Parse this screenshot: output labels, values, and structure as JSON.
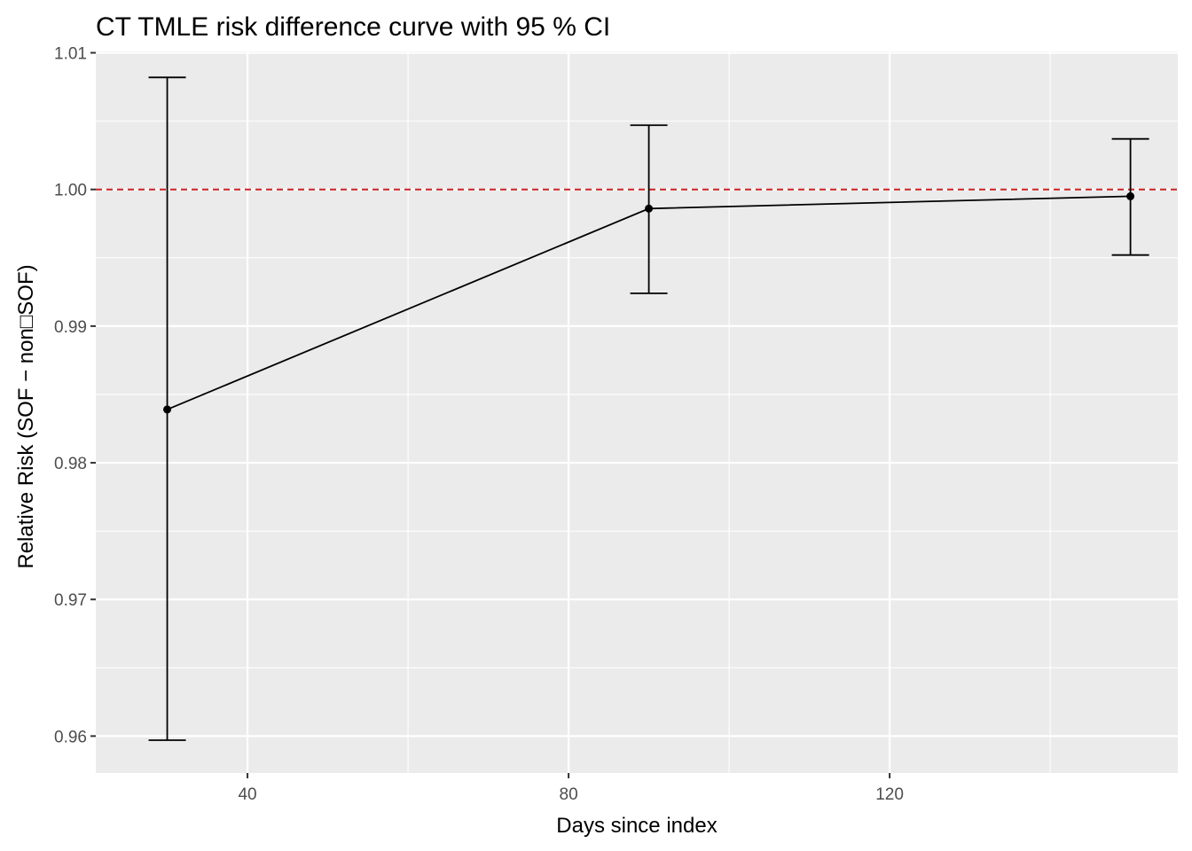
{
  "chart_data": {
    "type": "line",
    "title": "CT TMLE risk difference curve with 95 % CI",
    "xlabel": "Days since index",
    "ylabel": "Relative Risk (SOF − non□SOF)",
    "xlim": [
      21.1,
      155.9
    ],
    "ylim": [
      0.9573,
      1.0101
    ],
    "x_ticks": [
      40,
      80,
      120
    ],
    "x_tick_labels": [
      "40",
      "80",
      "120"
    ],
    "y_ticks": [
      0.96,
      0.97,
      0.98,
      0.99,
      1.0,
      1.01
    ],
    "y_tick_labels": [
      "0.96",
      "0.97",
      "0.98",
      "0.99",
      "1.00",
      "1.01"
    ],
    "grid": true,
    "panel_background": "#ebebeb",
    "series": [
      {
        "x": [
          30,
          90,
          150
        ],
        "values": [
          0.9839,
          0.9986,
          0.9995
        ],
        "lower": [
          0.9597,
          0.9924,
          0.9952
        ],
        "upper": [
          1.0082,
          1.0047,
          1.0037
        ],
        "color": "#000000"
      }
    ],
    "reference_line": {
      "y": 1.0,
      "color": "#cc2222",
      "style": "dashed"
    }
  }
}
